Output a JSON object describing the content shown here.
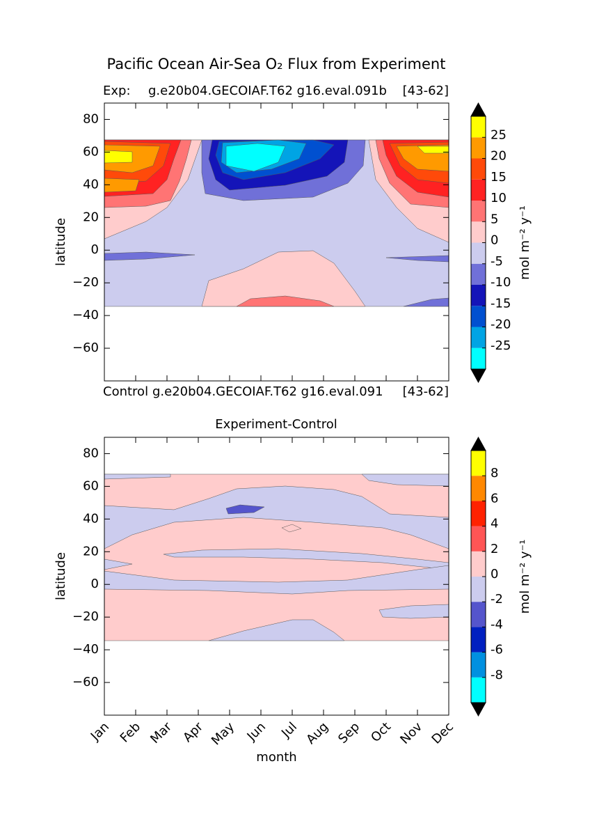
{
  "title": "Pacific Ocean Air-Sea O₂ Flux from Experiment",
  "chart_data": [
    {
      "type": "contour",
      "title_left": "Exp:",
      "title": "g.e20b04.GECOIAF.T62 g16.eval.091b",
      "title_right": "[43-62]",
      "caption_left": "Control",
      "caption": "g.e20b04.GECOIAF.T62 g16.eval.091",
      "caption_right": "[43-62]",
      "ylabel": "latitude",
      "xlim": [
        1,
        12
      ],
      "ylim": [
        -80,
        90
      ],
      "yticks": [
        {
          "value": -60,
          "label": "−60"
        },
        {
          "value": -40,
          "label": "−40"
        },
        {
          "value": -20,
          "label": "−20"
        },
        0,
        20,
        40,
        60,
        80
      ],
      "levels": [
        -30,
        -25,
        -20,
        -15,
        -10,
        -5,
        0,
        5,
        10,
        15,
        20,
        25,
        30
      ],
      "colors": [
        "#00ffff",
        "#00a4e4",
        "#0050d0",
        "#1414b8",
        "#7070d8",
        "#ccccee",
        "#ffcccc",
        "#ff7474",
        "#ff2222",
        "#ff4a0a",
        "#ff9a00",
        "#ffff00"
      ],
      "extend_color": "#000000",
      "cbar_ticks": [
        {
          "value": -25,
          "label": "-25"
        },
        {
          "value": -20,
          "label": "-20"
        },
        {
          "value": -15,
          "label": "-15"
        },
        {
          "value": -10,
          "label": "-10"
        },
        {
          "value": -5,
          "label": "-5"
        },
        0,
        5,
        10,
        15,
        20,
        25
      ],
      "cbar_label": "mol m⁻² y⁻¹"
    },
    {
      "type": "contour",
      "title": "Experiment-Control",
      "xlabel": "month",
      "ylabel": "latitude",
      "xlim": [
        1,
        12
      ],
      "ylim": [
        -80,
        90
      ],
      "xticks": [
        {
          "value": 1,
          "label": "Jan"
        },
        {
          "value": 2,
          "label": "Feb"
        },
        {
          "value": 3,
          "label": "Mar"
        },
        {
          "value": 4,
          "label": "Apr"
        },
        {
          "value": 5,
          "label": "May"
        },
        {
          "value": 6,
          "label": "Jun"
        },
        {
          "value": 7,
          "label": "Jul"
        },
        {
          "value": 8,
          "label": "Aug"
        },
        {
          "value": 9,
          "label": "Sep"
        },
        {
          "value": 10,
          "label": "Oct"
        },
        {
          "value": 11,
          "label": "Nov"
        },
        {
          "value": 12,
          "label": "Dec"
        }
      ],
      "yticks": [
        {
          "value": -60,
          "label": "−60"
        },
        {
          "value": -40,
          "label": "−40"
        },
        {
          "value": -20,
          "label": "−20"
        },
        0,
        20,
        40,
        60,
        80
      ],
      "levels": [
        -10,
        -8,
        -6,
        -4,
        -2,
        0,
        2,
        4,
        6,
        8,
        10
      ],
      "colors": [
        "#00ffff",
        "#0090e0",
        "#0020c0",
        "#5555cc",
        "#ccccee",
        "#ffcccc",
        "#ff5555",
        "#ff2200",
        "#ff8800",
        "#ffff00"
      ],
      "extend_color": "#000000",
      "cbar_ticks": [
        {
          "value": -8,
          "label": "-8"
        },
        {
          "value": -6,
          "label": "-6"
        },
        {
          "value": -4,
          "label": "-4"
        },
        {
          "value": -2,
          "label": "-2"
        },
        0,
        2,
        4,
        6,
        8
      ],
      "cbar_label": "mol m⁻² y⁻¹"
    }
  ]
}
